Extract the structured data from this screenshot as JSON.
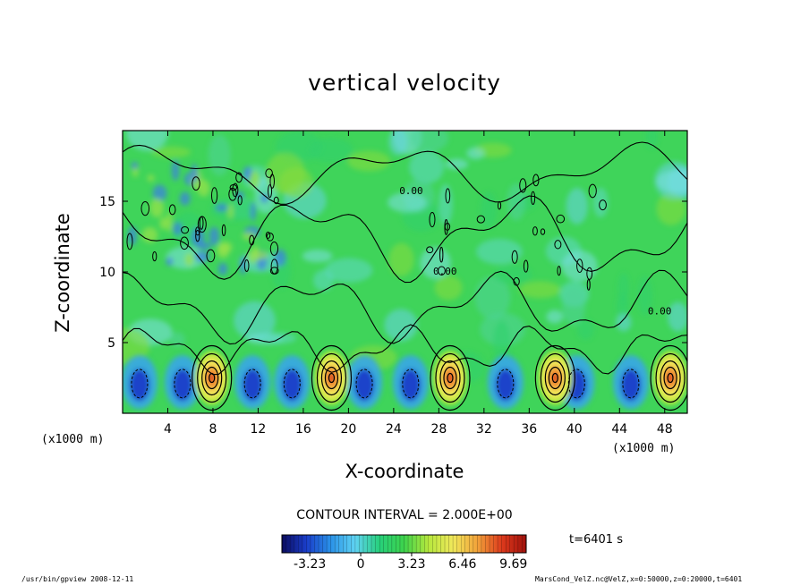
{
  "chart_data": {
    "type": "heatmap",
    "title": "vertical velocity",
    "xlabel": "X-coordinate",
    "ylabel": "Z-coordinate",
    "x_unit": "(x1000 m)",
    "xlim": [
      0,
      50
    ],
    "ylim": [
      0,
      20
    ],
    "x_ticks": [
      "4",
      "8",
      "12",
      "16",
      "20",
      "24",
      "28",
      "32",
      "36",
      "40",
      "44",
      "48"
    ],
    "y_ticks": [
      "5",
      "10",
      "15"
    ],
    "contour_interval": "CONTOUR INTERVAL = 2.000E+00",
    "colorbar": {
      "tick_labels": [
        "-3.23",
        "0",
        "3.23",
        "6.46",
        "9.69"
      ],
      "tick_values": [
        -3.23,
        0,
        3.23,
        6.46,
        9.69
      ],
      "range": [
        -5.0,
        10.5
      ],
      "colors": [
        "#0b0b5e",
        "#1a3dc9",
        "#2a92e8",
        "#5fd3f3",
        "#27d07a",
        "#3dd24c",
        "#b7e83d",
        "#f0e85a",
        "#f2a23a",
        "#dd3a1c",
        "#a0110c"
      ]
    },
    "features": {
      "updrafts_x": [
        7.9,
        18.5,
        29.0,
        38.3,
        48.5
      ],
      "updraft_z_center": 2.5,
      "downdrafts_x": [
        1.5,
        5.3,
        11.5,
        15.0,
        21.4,
        25.5,
        33.9,
        40.2,
        45.0
      ],
      "label_annotations": [
        "0.00",
        "0.00",
        "0.00"
      ]
    },
    "time_label": "t=6401 s"
  },
  "footer": {
    "left": "/usr/bin/gpview   2008-12-11",
    "right": "MarsCond_VelZ.nc@VelZ,x=0:50000,z=0:20000,t=6401"
  }
}
